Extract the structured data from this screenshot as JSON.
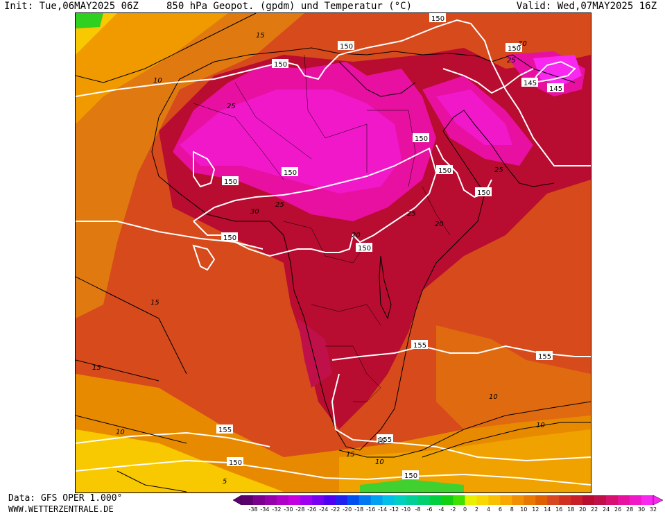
{
  "header": {
    "init": "Init: Tue,06MAY2025 06Z",
    "title": "850 hPa Geopot. (gpdm) und Temperatur (°C)",
    "valid": "Valid: Wed,07MAY2025 16Z"
  },
  "footer": {
    "data_source": "Data: GFS OPER 1.000°",
    "website": "WWW.WETTERZENTRALE.DE"
  },
  "colorbar": {
    "labels": [
      "-38",
      "-34",
      "-32",
      "-30",
      "-28",
      "-26",
      "-24",
      "-22",
      "-20",
      "-18",
      "-16",
      "-14",
      "-12",
      "-10",
      "-8",
      "-6",
      "-4",
      "-2",
      "0",
      "2",
      "4",
      "6",
      "8",
      "10",
      "12",
      "14",
      "16",
      "18",
      "20",
      "22",
      "24",
      "26",
      "28",
      "30",
      "32"
    ],
    "colors": [
      "#5a006e",
      "#7a0090",
      "#9600aa",
      "#b000c8",
      "#c400e0",
      "#a000f0",
      "#7800f0",
      "#5000f0",
      "#2020f0",
      "#0050f0",
      "#0078f0",
      "#00a0f0",
      "#00c0e8",
      "#00d0c0",
      "#00d098",
      "#00d070",
      "#00d040",
      "#10d010",
      "#40e000",
      "#e8f000",
      "#f8d800",
      "#f8c000",
      "#f8a800",
      "#f09000",
      "#e87800",
      "#e06000",
      "#d84820",
      "#d03020",
      "#c81e2a",
      "#b80c30",
      "#c0104a",
      "#d81070",
      "#e810a0",
      "#f018c8",
      "#f828f0"
    ]
  },
  "map": {
    "geopotential_labels": [
      "150",
      "150",
      "150",
      "150",
      "150",
      "150",
      "150",
      "150",
      "150",
      "150",
      "150",
      "145",
      "145",
      "155",
      "155",
      "155",
      "155",
      "150",
      "150"
    ],
    "temperature_labels": [
      "15",
      "15",
      "10",
      "25",
      "25",
      "30",
      "25",
      "20",
      "20",
      "25",
      "30",
      "25",
      "15",
      "15",
      "10",
      "10",
      "10",
      "15",
      "10",
      "5"
    ]
  }
}
